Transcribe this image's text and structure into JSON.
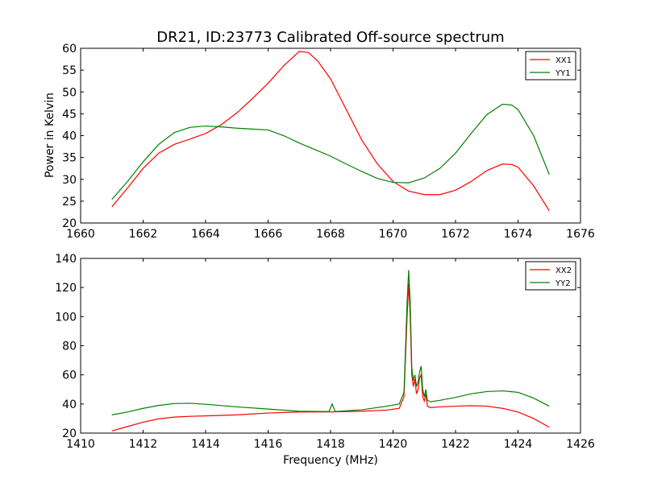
{
  "chart_data": [
    {
      "type": "line",
      "title": "DR21, ID:23773 Calibrated Off-source spectrum",
      "xlabel": "",
      "ylabel": "Power in Kelvin",
      "xlim": [
        1660,
        1676
      ],
      "ylim": [
        20,
        60
      ],
      "xticks": [
        1660,
        1662,
        1664,
        1666,
        1668,
        1670,
        1672,
        1674,
        1676
      ],
      "yticks": [
        20,
        25,
        30,
        35,
        40,
        45,
        50,
        55,
        60
      ],
      "grid": false,
      "legend_position": "top-right",
      "series": [
        {
          "name": "XX1",
          "color": "#ff0000",
          "points": [
            [
              1661.0,
              23.7
            ],
            [
              1661.5,
              28.0
            ],
            [
              1662.0,
              32.5
            ],
            [
              1662.5,
              36.0
            ],
            [
              1663.0,
              38.0
            ],
            [
              1663.5,
              39.2
            ],
            [
              1664.0,
              40.5
            ],
            [
              1664.5,
              42.5
            ],
            [
              1665.0,
              45.2
            ],
            [
              1665.5,
              48.5
            ],
            [
              1666.0,
              52.0
            ],
            [
              1666.5,
              56.0
            ],
            [
              1667.0,
              59.3
            ],
            [
              1667.3,
              59.0
            ],
            [
              1667.6,
              57.0
            ],
            [
              1668.0,
              53.0
            ],
            [
              1668.5,
              46.0
            ],
            [
              1669.0,
              39.0
            ],
            [
              1669.5,
              33.5
            ],
            [
              1670.0,
              29.5
            ],
            [
              1670.5,
              27.3
            ],
            [
              1671.0,
              26.5
            ],
            [
              1671.5,
              26.5
            ],
            [
              1672.0,
              27.5
            ],
            [
              1672.5,
              29.5
            ],
            [
              1673.0,
              32.0
            ],
            [
              1673.5,
              33.5
            ],
            [
              1673.8,
              33.4
            ],
            [
              1674.0,
              32.8
            ],
            [
              1674.5,
              28.5
            ],
            [
              1675.0,
              22.8
            ]
          ]
        },
        {
          "name": "YY1",
          "color": "#008000",
          "points": [
            [
              1661.0,
              25.4
            ],
            [
              1661.5,
              29.5
            ],
            [
              1662.0,
              34.0
            ],
            [
              1662.5,
              38.0
            ],
            [
              1663.0,
              40.7
            ],
            [
              1663.5,
              41.9
            ],
            [
              1664.0,
              42.2
            ],
            [
              1664.5,
              42.0
            ],
            [
              1665.0,
              41.7
            ],
            [
              1665.5,
              41.5
            ],
            [
              1666.0,
              41.3
            ],
            [
              1666.5,
              40.0
            ],
            [
              1667.0,
              38.3
            ],
            [
              1667.5,
              36.8
            ],
            [
              1668.0,
              35.3
            ],
            [
              1668.5,
              33.5
            ],
            [
              1669.0,
              31.8
            ],
            [
              1669.5,
              30.2
            ],
            [
              1670.0,
              29.3
            ],
            [
              1670.5,
              29.2
            ],
            [
              1671.0,
              30.3
            ],
            [
              1671.5,
              32.5
            ],
            [
              1672.0,
              36.0
            ],
            [
              1672.5,
              40.5
            ],
            [
              1673.0,
              44.8
            ],
            [
              1673.5,
              47.2
            ],
            [
              1673.8,
              47.0
            ],
            [
              1674.0,
              46.0
            ],
            [
              1674.5,
              40.0
            ],
            [
              1675.0,
              31.1
            ]
          ]
        }
      ]
    },
    {
      "type": "line",
      "title": "",
      "xlabel": "Frequency (MHz)",
      "ylabel": "",
      "xlim": [
        1410,
        1426
      ],
      "ylim": [
        20,
        140
      ],
      "xticks": [
        1410,
        1412,
        1414,
        1416,
        1418,
        1420,
        1422,
        1424,
        1426
      ],
      "yticks": [
        20,
        40,
        60,
        80,
        100,
        120,
        140
      ],
      "grid": false,
      "legend_position": "top-right",
      "series": [
        {
          "name": "XX2",
          "color": "#ff0000",
          "points": [
            [
              1411.0,
              21.5
            ],
            [
              1411.5,
              24.5
            ],
            [
              1412.0,
              27.5
            ],
            [
              1412.5,
              29.8
            ],
            [
              1413.0,
              31.0
            ],
            [
              1413.5,
              31.5
            ],
            [
              1414.0,
              31.8
            ],
            [
              1415.0,
              32.5
            ],
            [
              1416.0,
              33.8
            ],
            [
              1417.0,
              34.5
            ],
            [
              1418.0,
              34.6
            ],
            [
              1419.0,
              35.0
            ],
            [
              1419.8,
              35.8
            ],
            [
              1420.2,
              37.0
            ],
            [
              1420.35,
              45.0
            ],
            [
              1420.45,
              100.0
            ],
            [
              1420.5,
              123.0
            ],
            [
              1420.55,
              100.0
            ],
            [
              1420.6,
              60.0
            ],
            [
              1420.65,
              52.0
            ],
            [
              1420.7,
              57.0
            ],
            [
              1420.75,
              47.0
            ],
            [
              1420.8,
              50.0
            ],
            [
              1420.85,
              58.0
            ],
            [
              1420.9,
              60.0
            ],
            [
              1420.95,
              45.0
            ],
            [
              1421.0,
              42.0
            ],
            [
              1421.05,
              47.0
            ],
            [
              1421.1,
              38.5
            ],
            [
              1421.2,
              37.5
            ],
            [
              1421.5,
              38.0
            ],
            [
              1422.0,
              38.5
            ],
            [
              1422.5,
              38.8
            ],
            [
              1423.0,
              38.5
            ],
            [
              1423.5,
              37.0
            ],
            [
              1424.0,
              34.5
            ],
            [
              1424.5,
              30.0
            ],
            [
              1425.0,
              24.0
            ]
          ]
        },
        {
          "name": "YY2",
          "color": "#008000",
          "points": [
            [
              1411.0,
              32.5
            ],
            [
              1411.5,
              34.5
            ],
            [
              1412.0,
              37.0
            ],
            [
              1412.5,
              39.0
            ],
            [
              1413.0,
              40.3
            ],
            [
              1413.5,
              40.5
            ],
            [
              1414.0,
              39.8
            ],
            [
              1415.0,
              38.0
            ],
            [
              1416.0,
              36.5
            ],
            [
              1417.0,
              35.0
            ],
            [
              1417.95,
              34.8
            ],
            [
              1418.05,
              40.0
            ],
            [
              1418.15,
              34.8
            ],
            [
              1419.0,
              36.0
            ],
            [
              1419.8,
              38.5
            ],
            [
              1420.2,
              40.0
            ],
            [
              1420.35,
              48.0
            ],
            [
              1420.45,
              110.0
            ],
            [
              1420.5,
              132.0
            ],
            [
              1420.55,
              110.0
            ],
            [
              1420.6,
              65.0
            ],
            [
              1420.65,
              56.0
            ],
            [
              1420.7,
              60.0
            ],
            [
              1420.75,
              52.0
            ],
            [
              1420.8,
              55.0
            ],
            [
              1420.85,
              62.0
            ],
            [
              1420.9,
              66.0
            ],
            [
              1420.95,
              50.0
            ],
            [
              1421.0,
              45.0
            ],
            [
              1421.05,
              50.0
            ],
            [
              1421.1,
              42.5
            ],
            [
              1421.2,
              41.5
            ],
            [
              1421.5,
              42.5
            ],
            [
              1422.0,
              44.5
            ],
            [
              1422.5,
              47.0
            ],
            [
              1423.0,
              48.5
            ],
            [
              1423.5,
              49.0
            ],
            [
              1424.0,
              48.0
            ],
            [
              1424.5,
              44.0
            ],
            [
              1425.0,
              38.5
            ]
          ]
        }
      ]
    }
  ]
}
